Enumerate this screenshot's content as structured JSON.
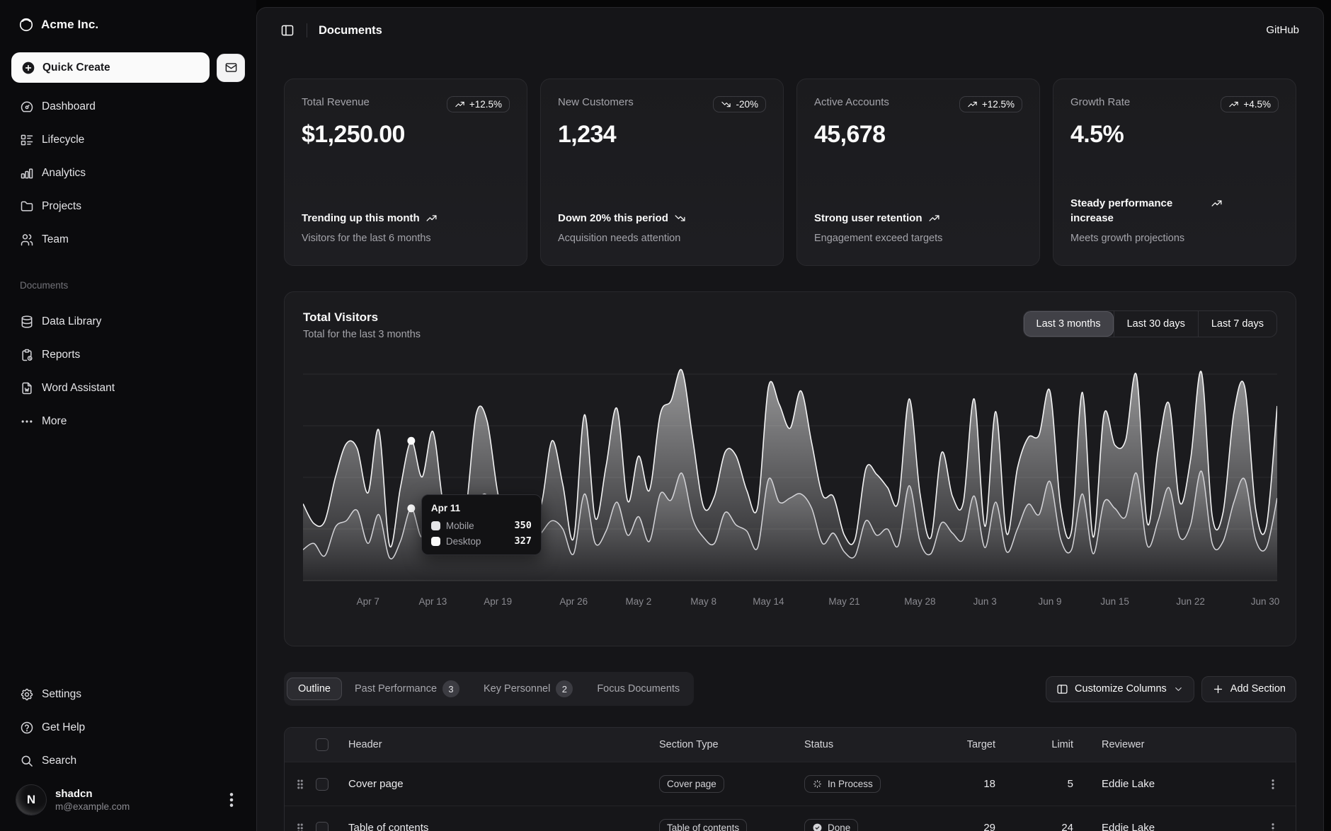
{
  "sidebar": {
    "brand": {
      "name": "Acme Inc.",
      "icon": "logo"
    },
    "quick_create": {
      "label": "Quick Create",
      "icon": "circle-plus"
    },
    "inbox": {
      "icon": "mail"
    },
    "nav_main": [
      {
        "label": "Dashboard",
        "icon": "dashboard"
      },
      {
        "label": "Lifecycle",
        "icon": "list-details"
      },
      {
        "label": "Analytics",
        "icon": "chart-bar"
      },
      {
        "label": "Projects",
        "icon": "folder"
      },
      {
        "label": "Team",
        "icon": "users"
      }
    ],
    "documents_group": {
      "label": "Documents",
      "items": [
        {
          "label": "Data Library",
          "icon": "database"
        },
        {
          "label": "Reports",
          "icon": "report"
        },
        {
          "label": "Word Assistant",
          "icon": "file-word"
        },
        {
          "label": "More",
          "icon": "dots"
        }
      ]
    },
    "nav_secondary": [
      {
        "label": "Settings",
        "icon": "settings"
      },
      {
        "label": "Get Help",
        "icon": "help"
      },
      {
        "label": "Search",
        "icon": "search"
      }
    ],
    "user": {
      "name": "shadcn",
      "email": "m@example.com",
      "avatar_initial": "N"
    }
  },
  "header": {
    "title": "Documents",
    "link": "GitHub"
  },
  "stat_cards": [
    {
      "label": "Total Revenue",
      "value": "$1,250.00",
      "badge": "+12.5%",
      "trend": "up",
      "footer_title": "Trending up this month",
      "footer_desc": "Visitors for the last 6 months"
    },
    {
      "label": "New Customers",
      "value": "1,234",
      "badge": "-20%",
      "trend": "down",
      "footer_title": "Down 20% this period",
      "footer_desc": "Acquisition needs attention"
    },
    {
      "label": "Active Accounts",
      "value": "45,678",
      "badge": "+12.5%",
      "trend": "up",
      "footer_title": "Strong user retention",
      "footer_desc": "Engagement exceed targets"
    },
    {
      "label": "Growth Rate",
      "value": "4.5%",
      "badge": "+4.5%",
      "trend": "up",
      "footer_title": "Steady performance increase",
      "footer_desc": "Meets growth projections"
    }
  ],
  "visitors_card": {
    "title": "Total Visitors",
    "subtitle": "Total for the last 3 months",
    "ranges": [
      "Last 3 months",
      "Last 30 days",
      "Last 7 days"
    ],
    "active_range": "Last 3 months"
  },
  "chart_data": {
    "type": "area",
    "stacked": true,
    "title": "Total Visitors",
    "legend_entries": [
      "Mobile",
      "Desktop"
    ],
    "grid": "horizontal",
    "ylim": [
      0,
      1000
    ],
    "x_ticks": [
      {
        "label": "Apr 7",
        "index": 6
      },
      {
        "label": "Apr 13",
        "index": 12
      },
      {
        "label": "Apr 19",
        "index": 18
      },
      {
        "label": "Apr 26",
        "index": 25
      },
      {
        "label": "May 2",
        "index": 31
      },
      {
        "label": "May 8",
        "index": 37
      },
      {
        "label": "May 14",
        "index": 43
      },
      {
        "label": "May 21",
        "index": 50
      },
      {
        "label": "May 28",
        "index": 57
      },
      {
        "label": "Jun 3",
        "index": 63
      },
      {
        "label": "Jun 9",
        "index": 69
      },
      {
        "label": "Jun 15",
        "index": 75
      },
      {
        "label": "Jun 22",
        "index": 82
      },
      {
        "label": "Jun 30",
        "index": 90
      }
    ],
    "series": [
      {
        "name": "Mobile",
        "values": [
          150,
          180,
          120,
          260,
          290,
          340,
          180,
          320,
          110,
          190,
          350,
          210,
          380,
          220,
          170,
          190,
          360,
          410,
          180,
          150,
          200,
          170,
          230,
          290,
          250,
          130,
          420,
          180,
          240,
          380,
          220,
          310,
          190,
          420,
          390,
          520,
          300,
          210,
          180,
          330,
          270,
          240,
          160,
          490,
          380,
          400,
          420,
          350,
          180,
          230,
          140,
          120,
          290,
          220,
          250,
          170,
          460,
          190,
          130,
          280,
          230,
          200,
          410,
          160,
          380,
          140,
          250,
          370,
          320,
          480,
          200,
          150,
          420,
          130,
          380,
          350,
          310,
          520,
          170,
          290,
          450,
          210,
          270,
          530,
          180,
          190,
          380,
          490,
          200,
          160,
          400
        ]
      },
      {
        "name": "Desktop",
        "values": [
          222,
          97,
          167,
          242,
          373,
          301,
          245,
          409,
          59,
          261,
          327,
          292,
          342,
          137,
          120,
          138,
          446,
          364,
          243,
          89,
          137,
          224,
          138,
          387,
          215,
          75,
          383,
          122,
          315,
          454,
          165,
          293,
          247,
          385,
          481,
          498,
          388,
          149,
          227,
          293,
          335,
          197,
          197,
          448,
          473,
          338,
          499,
          315,
          235,
          177,
          82,
          81,
          252,
          294,
          201,
          213,
          420,
          233,
          78,
          340,
          178,
          178,
          470,
          103,
          439,
          88,
          294,
          323,
          385,
          438,
          155,
          92,
          492,
          81,
          426,
          307,
          371,
          475,
          107,
          341,
          408,
          169,
          317,
          480,
          132,
          141,
          434,
          448,
          149,
          103,
          446
        ]
      }
    ],
    "tooltip": {
      "title": "Apr 11",
      "index": 10,
      "rows": [
        {
          "name": "Mobile",
          "value": "350",
          "swatch": "#e4e4e7"
        },
        {
          "name": "Desktop",
          "value": "327",
          "swatch": "#fafafa"
        }
      ]
    }
  },
  "tabs": {
    "items": [
      {
        "label": "Outline",
        "active": true
      },
      {
        "label": "Past Performance",
        "badge": "3"
      },
      {
        "label": "Key Personnel",
        "badge": "2"
      },
      {
        "label": "Focus Documents"
      }
    ],
    "customize_button": "Customize Columns",
    "add_button": "Add Section"
  },
  "table": {
    "columns": [
      "Header",
      "Section Type",
      "Status",
      "Target",
      "Limit",
      "Reviewer"
    ],
    "rows": [
      {
        "header": "Cover page",
        "section_type": "Cover page",
        "status": "In Process",
        "status_icon": "loader",
        "target": "18",
        "limit": "5",
        "reviewer": "Eddie Lake"
      },
      {
        "header": "Table of contents",
        "section_type": "Table of contents",
        "status": "Done",
        "status_icon": "circle-check",
        "target": "29",
        "limit": "24",
        "reviewer": "Eddie Lake"
      }
    ]
  },
  "colors": {
    "accent_fill": "#ffffff",
    "card_bg": "#1b1b1e",
    "inset_bg": "#151518",
    "sidebar_bg": "#0b0b0d",
    "muted_text": "#a4a4aa"
  }
}
